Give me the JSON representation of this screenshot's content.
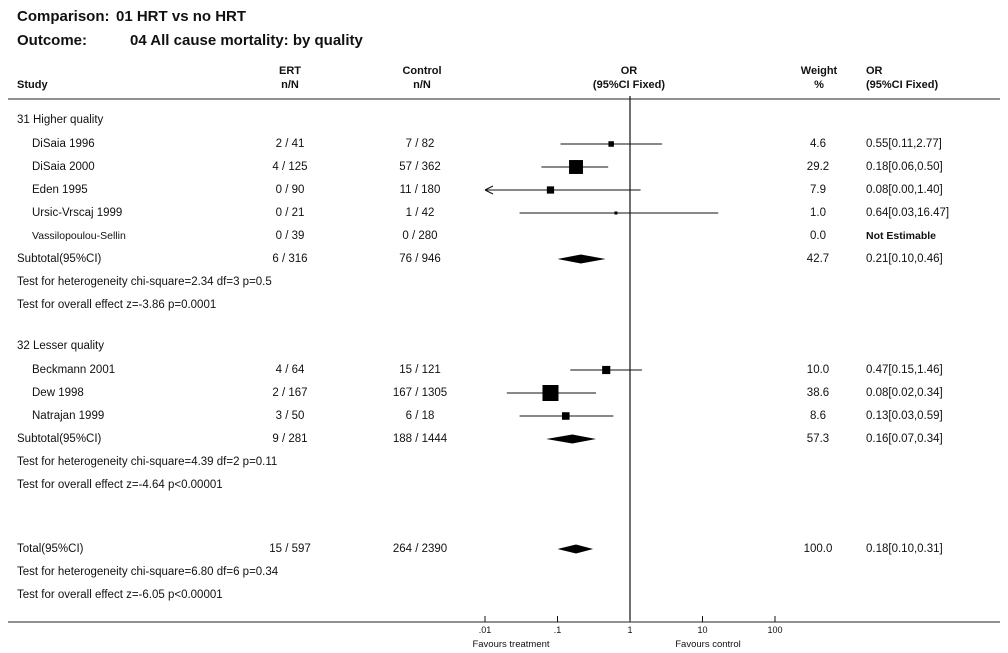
{
  "title": {
    "comparison_label": "Comparison:",
    "comparison_value": "01 HRT vs no HRT",
    "outcome_label": "Outcome:",
    "outcome_value": "04 All cause mortality: by quality"
  },
  "columns": {
    "study": "Study",
    "treat_line1": "ERT",
    "treat_line2": "n/N",
    "control_line1": "Control",
    "control_line2": "n/N",
    "or_line1": "OR",
    "or_line2": "(95%CI Fixed)",
    "weight_line1": "Weight",
    "weight_line2": "%",
    "orval_line1": "OR",
    "orval_line2": "(95%CI Fixed)"
  },
  "groups": [
    {
      "label": "31 Higher quality",
      "studies": [
        {
          "name": "DiSaia 1996",
          "treat": "2 / 41",
          "control": "7 / 82",
          "weight": "4.6",
          "or_text": "0.55[0.11,2.77]"
        },
        {
          "name": "DiSaia 2000",
          "treat": "4 / 125",
          "control": "57 / 362",
          "weight": "29.2",
          "or_text": "0.18[0.06,0.50]"
        },
        {
          "name": "Eden 1995",
          "treat": "0 / 90",
          "control": "11 / 180",
          "weight": "7.9",
          "or_text": "0.08[0.00,1.40]"
        },
        {
          "name": "Ursic-Vrscaj 1999",
          "treat": "0 / 21",
          "control": "1 / 42",
          "weight": "1.0",
          "or_text": "0.64[0.03,16.47]"
        },
        {
          "name": "Vassilopoulou-Sellin",
          "treat": "0 / 39",
          "control": "0 / 280",
          "weight": "0.0",
          "or_text": "Not Estimable"
        }
      ],
      "subtotal": {
        "name": "Subtotal(95%CI)",
        "treat": "6 / 316",
        "control": "76 / 946",
        "weight": "42.7",
        "or_text": "0.21[0.10,0.46]"
      },
      "heterogeneity": "Test for heterogeneity chi-square=2.34 df=3 p=0.5",
      "overall": "Test for overall effect z=-3.86 p=0.0001"
    },
    {
      "label": "32 Lesser quality",
      "studies": [
        {
          "name": "Beckmann 2001",
          "treat": "4 / 64",
          "control": "15 / 121",
          "weight": "10.0",
          "or_text": "0.47[0.15,1.46]"
        },
        {
          "name": "Dew 1998",
          "treat": "2 / 167",
          "control": "167 / 1305",
          "weight": "38.6",
          "or_text": "0.08[0.02,0.34]"
        },
        {
          "name": "Natrajan 1999",
          "treat": "3 / 50",
          "control": "6 / 18",
          "weight": "8.6",
          "or_text": "0.13[0.03,0.59]"
        }
      ],
      "subtotal": {
        "name": "Subtotal(95%CI)",
        "treat": "9 / 281",
        "control": "188 / 1444",
        "weight": "57.3",
        "or_text": "0.16[0.07,0.34]"
      },
      "heterogeneity": "Test for heterogeneity chi-square=4.39 df=2 p=0.11",
      "overall": "Test for overall effect z=-4.64 p<0.00001"
    }
  ],
  "total": {
    "name": "Total(95%CI)",
    "treat": "15 / 597",
    "control": "264 / 2390",
    "weight": "100.0",
    "or_text": "0.18[0.10,0.31]",
    "heterogeneity": "Test for heterogeneity chi-square=6.80 df=6 p=0.34",
    "overall": "Test for overall effect z=-6.05 p<0.00001"
  },
  "axis": {
    "ticks": [
      {
        "value": 0.01,
        "label": ".01"
      },
      {
        "value": 0.1,
        "label": ".1"
      },
      {
        "value": 1,
        "label": "1"
      },
      {
        "value": 10,
        "label": "10"
      },
      {
        "value": 100,
        "label": "100"
      }
    ],
    "favours_left": "Favours treatment",
    "favours_right": "Favours control"
  },
  "chart_data": {
    "type": "forest",
    "xscale": "log",
    "xlim": [
      0.01,
      100
    ],
    "null_line": 1,
    "points": [
      {
        "label": "DiSaia 1996",
        "or": 0.55,
        "lo": 0.11,
        "hi": 2.77,
        "weight": 4.6
      },
      {
        "label": "DiSaia 2000",
        "or": 0.18,
        "lo": 0.06,
        "hi": 0.5,
        "weight": 29.2
      },
      {
        "label": "Eden 1995",
        "or": 0.08,
        "lo": 0.0,
        "hi": 1.4,
        "weight": 7.9
      },
      {
        "label": "Ursic-Vrscaj 1999",
        "or": 0.64,
        "lo": 0.03,
        "hi": 16.47,
        "weight": 1.0
      },
      {
        "label": "Beckmann 2001",
        "or": 0.47,
        "lo": 0.15,
        "hi": 1.46,
        "weight": 10.0
      },
      {
        "label": "Dew 1998",
        "or": 0.08,
        "lo": 0.02,
        "hi": 0.34,
        "weight": 38.6
      },
      {
        "label": "Natrajan 1999",
        "or": 0.13,
        "lo": 0.03,
        "hi": 0.59,
        "weight": 8.6
      }
    ],
    "diamonds": [
      {
        "label": "Subtotal(95%CI) 31 Higher quality",
        "or": 0.21,
        "lo": 0.1,
        "hi": 0.46
      },
      {
        "label": "Subtotal(95%CI) 32 Lesser quality",
        "or": 0.16,
        "lo": 0.07,
        "hi": 0.34
      },
      {
        "label": "Total(95%CI)",
        "or": 0.18,
        "lo": 0.1,
        "hi": 0.31
      }
    ]
  }
}
